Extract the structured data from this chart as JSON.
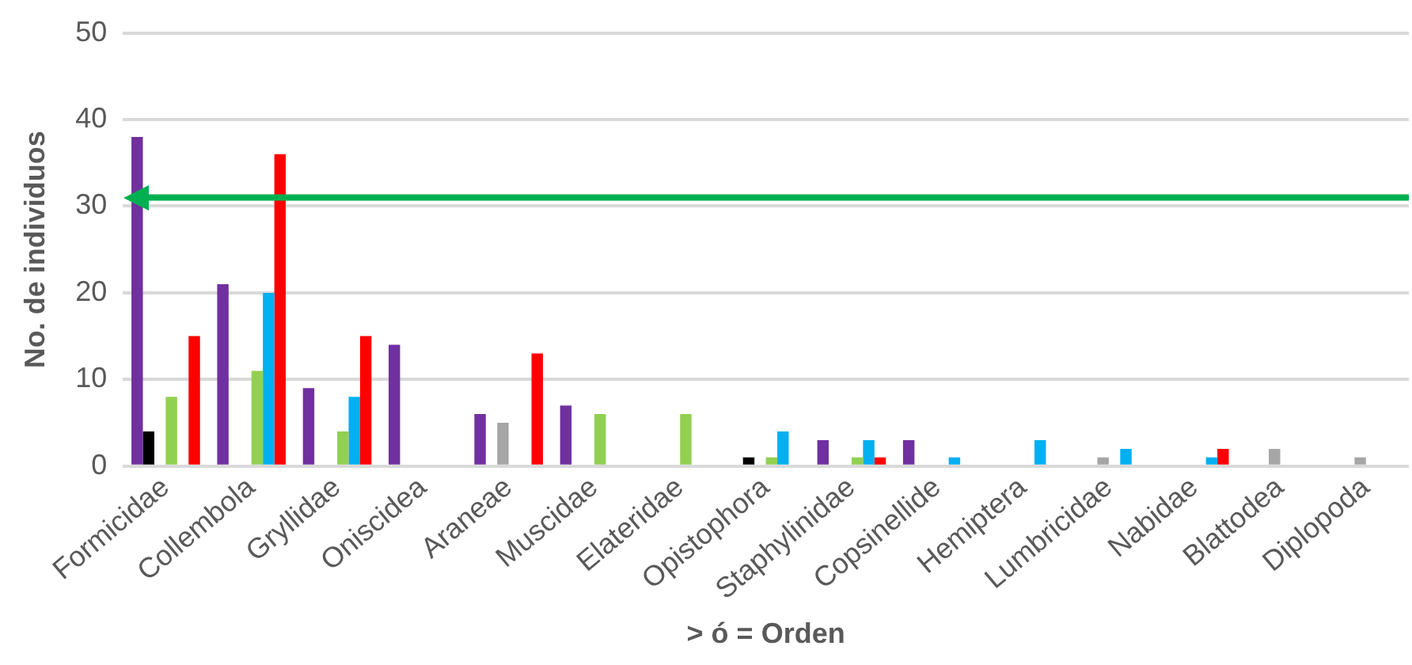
{
  "chart_data": {
    "type": "bar",
    "xlabel": "> ó = Orden",
    "ylabel": "No. de individuos",
    "categories": [
      "Formicidae",
      "Collembola",
      "Gryllidae",
      "Oniscidea",
      "Araneae",
      "Muscidae",
      "Elateridae",
      "Opistophora",
      "Staphylinidae",
      "Copsinellide",
      "Hemiptera",
      "Lumbricidae",
      "Nabidae",
      "Blattodea",
      "Diplopoda"
    ],
    "series": [
      {
        "color": "#7030a0",
        "values": [
          38,
          21,
          9,
          14,
          6,
          7,
          null,
          null,
          3,
          3,
          null,
          null,
          null,
          null,
          null
        ]
      },
      {
        "color": "#000000",
        "values": [
          4,
          null,
          null,
          null,
          null,
          null,
          null,
          1,
          null,
          null,
          null,
          null,
          null,
          null,
          null
        ]
      },
      {
        "color": "#a6a6a6",
        "values": [
          null,
          null,
          null,
          null,
          5,
          null,
          null,
          null,
          null,
          null,
          null,
          1,
          null,
          2,
          1
        ]
      },
      {
        "color": "#92d050",
        "values": [
          8,
          11,
          4,
          null,
          null,
          6,
          6,
          1,
          1,
          null,
          null,
          null,
          null,
          null,
          null
        ]
      },
      {
        "color": "#00b0f0",
        "values": [
          null,
          20,
          8,
          null,
          null,
          null,
          null,
          4,
          3,
          1,
          3,
          2,
          1,
          null,
          null
        ]
      },
      {
        "color": "#ff0000",
        "values": [
          15,
          36,
          15,
          null,
          13,
          null,
          null,
          null,
          1,
          null,
          null,
          null,
          2,
          null,
          null
        ]
      }
    ],
    "ylim": [
      0,
      50
    ],
    "yticks": [
      0,
      10,
      20,
      30,
      40,
      50
    ],
    "grid": "y",
    "ref_lines": [
      {
        "axis": "y",
        "value": 31,
        "color": "#00b050"
      }
    ]
  }
}
